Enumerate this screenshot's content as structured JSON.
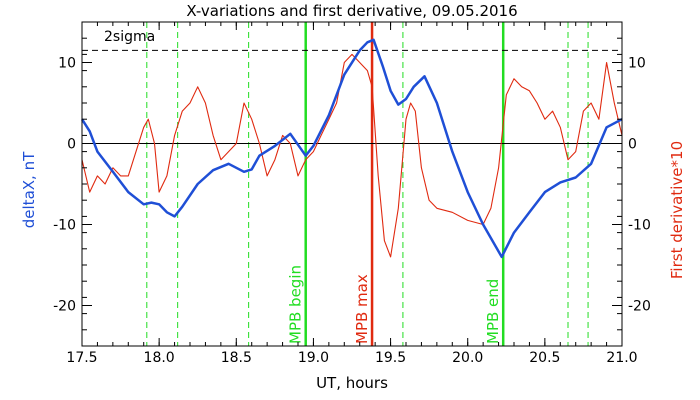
{
  "chart_data": {
    "type": "line",
    "title": "X-variations and first derivative, 09.05.2016",
    "xlabel": "UT, hours",
    "ylabel_left": "deltaX, nT",
    "ylabel_right": "First derivative*10",
    "xlim": [
      17.5,
      21.0
    ],
    "ylim": [
      -25,
      15
    ],
    "x_ticks": [
      17.5,
      18.0,
      18.5,
      19.0,
      19.5,
      20.0,
      20.5,
      21.0
    ],
    "x_tick_labels": [
      "17.5",
      "18.0",
      "18.5",
      "19.0",
      "19.5",
      "20.0",
      "20.5",
      "21.0"
    ],
    "y_ticks": [
      10,
      0,
      -10,
      -20
    ],
    "y_tick_labels": [
      "10",
      "0",
      "-10",
      "-20"
    ],
    "grid": false,
    "colors": {
      "deltaX": "#1f4fd6",
      "derivative": "#e02a10",
      "mpb_boundary": "#22dd22",
      "mpb_max": "#e02a10",
      "axes": "#000000"
    },
    "series": [
      {
        "name": "deltaX, nT",
        "axis": "left",
        "x": [
          17.5,
          17.55,
          17.6,
          17.7,
          17.8,
          17.9,
          17.95,
          18.0,
          18.05,
          18.1,
          18.15,
          18.25,
          18.35,
          18.45,
          18.55,
          18.6,
          18.65,
          18.75,
          18.85,
          18.95,
          19.0,
          19.1,
          19.2,
          19.3,
          19.35,
          19.39,
          19.45,
          19.5,
          19.55,
          19.6,
          19.65,
          19.72,
          19.8,
          19.9,
          20.0,
          20.1,
          20.22,
          20.3,
          20.4,
          20.5,
          20.6,
          20.7,
          20.8,
          20.9,
          21.0
        ],
        "y": [
          3.0,
          1.5,
          -1,
          -3.5,
          -6,
          -7.5,
          -7.3,
          -7.5,
          -8.5,
          -9,
          -7.8,
          -5,
          -3.3,
          -2.5,
          -3.5,
          -3.2,
          -1.5,
          -0.3,
          1.2,
          -1.5,
          -0.3,
          3.5,
          8.5,
          11.5,
          12.5,
          12.8,
          9.5,
          6.5,
          4.8,
          5.5,
          7,
          8.3,
          5,
          -1,
          -6,
          -10,
          -14,
          -11,
          -8.5,
          -6,
          -4.8,
          -4.2,
          -2.5,
          2,
          3.0
        ]
      },
      {
        "name": "First derivative*10",
        "axis": "right",
        "x": [
          17.5,
          17.55,
          17.6,
          17.65,
          17.7,
          17.75,
          17.8,
          17.85,
          17.9,
          17.93,
          17.97,
          18.0,
          18.05,
          18.1,
          18.15,
          18.2,
          18.25,
          18.3,
          18.35,
          18.4,
          18.45,
          18.5,
          18.55,
          18.6,
          18.65,
          18.7,
          18.75,
          18.8,
          18.85,
          18.9,
          18.95,
          19.0,
          19.05,
          19.1,
          19.15,
          19.2,
          19.25,
          19.3,
          19.35,
          19.38,
          19.42,
          19.46,
          19.5,
          19.55,
          19.6,
          19.63,
          19.66,
          19.7,
          19.75,
          19.8,
          19.9,
          20.0,
          20.1,
          20.15,
          20.2,
          20.25,
          20.3,
          20.35,
          20.4,
          20.45,
          20.5,
          20.55,
          20.6,
          20.65,
          20.7,
          20.75,
          20.8,
          20.85,
          20.9,
          20.95,
          21.0
        ],
        "y": [
          -2,
          -6,
          -4,
          -5,
          -3,
          -4,
          -4,
          -1,
          2,
          3,
          0,
          -6,
          -4,
          1,
          4,
          5,
          7,
          5,
          1,
          -2,
          -1,
          0,
          5,
          3,
          0,
          -4,
          -2,
          1,
          0,
          -4,
          -2,
          -1,
          1,
          3,
          5,
          10,
          11,
          10,
          9,
          7,
          -4,
          -12,
          -14,
          -8,
          3,
          5,
          4,
          -3,
          -7,
          -8,
          -8.5,
          -9.5,
          -10,
          -8,
          -3,
          6,
          8,
          7,
          6.5,
          5,
          3,
          4,
          2,
          -2,
          -1,
          4,
          5,
          3,
          10,
          5,
          1
        ]
      }
    ],
    "reference_lines": [
      {
        "label": "2sigma",
        "kind": "horizontal",
        "value": 11.5,
        "style": "dashed"
      },
      {
        "label": "",
        "kind": "horizontal",
        "value": 0,
        "style": "solid"
      }
    ],
    "vertical_markers": [
      {
        "x": 17.92,
        "style": "dashed",
        "label": ""
      },
      {
        "x": 18.12,
        "style": "dashed",
        "label": ""
      },
      {
        "x": 18.58,
        "style": "dashed",
        "label": ""
      },
      {
        "x": 18.95,
        "style": "solid",
        "label": "MPB begin",
        "role": "boundary"
      },
      {
        "x": 19.38,
        "style": "solid",
        "label": "MPB max",
        "role": "max"
      },
      {
        "x": 19.58,
        "style": "dashed",
        "label": ""
      },
      {
        "x": 20.23,
        "style": "solid",
        "label": "MPB end",
        "role": "boundary"
      },
      {
        "x": 20.65,
        "style": "dashed",
        "label": ""
      },
      {
        "x": 20.78,
        "style": "dashed",
        "label": ""
      }
    ]
  }
}
